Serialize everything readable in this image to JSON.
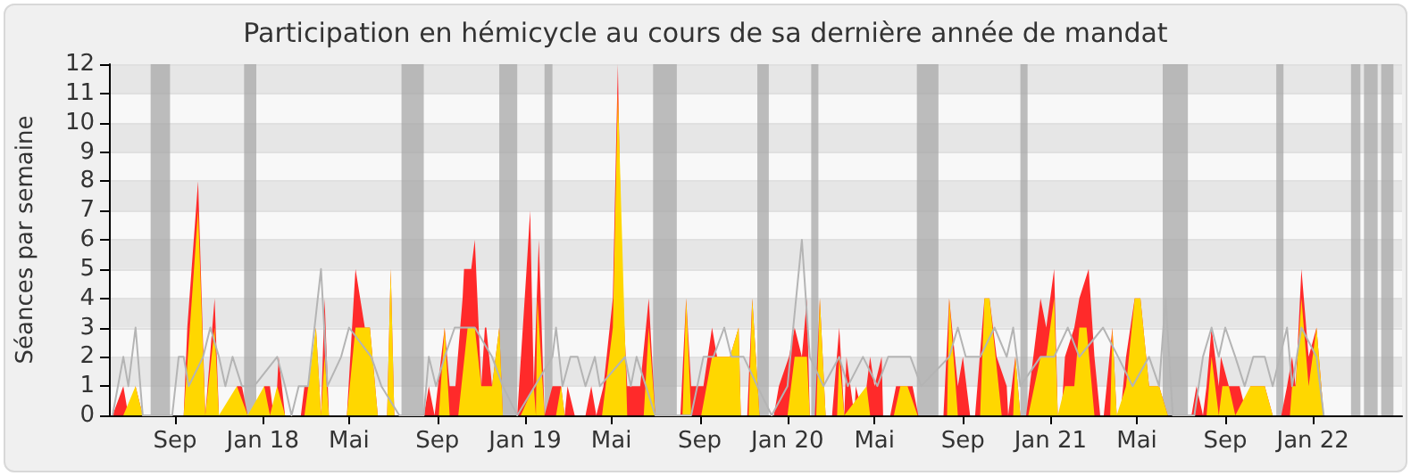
{
  "chart_data": {
    "type": "area",
    "title": "Participation en hémicycle au cours de sa dernière année de mandat",
    "ylabel": "Séances par semaine",
    "xlim": [
      "2017-06-01",
      "2022-05-05"
    ],
    "xticks": [
      {
        "value": "2017-09-01",
        "label": "Sep"
      },
      {
        "value": "2018-01-01",
        "label": "Jan 18"
      },
      {
        "value": "2018-05-01",
        "label": "Mai"
      },
      {
        "value": "2018-09-01",
        "label": "Sep"
      },
      {
        "value": "2019-01-01",
        "label": "Jan 19"
      },
      {
        "value": "2019-05-01",
        "label": "Mai"
      },
      {
        "value": "2019-09-01",
        "label": "Sep"
      },
      {
        "value": "2020-01-01",
        "label": "Jan 20"
      },
      {
        "value": "2020-05-01",
        "label": "Mai"
      },
      {
        "value": "2020-09-01",
        "label": "Sep"
      },
      {
        "value": "2021-01-01",
        "label": "Jan 21"
      },
      {
        "value": "2021-05-01",
        "label": "Mai"
      },
      {
        "value": "2021-09-01",
        "label": "Sep"
      },
      {
        "value": "2022-01-01",
        "label": "Jan 22"
      }
    ],
    "ylim": [
      0,
      12
    ],
    "yticks": [
      0,
      1,
      2,
      3,
      4,
      5,
      6,
      7,
      8,
      9,
      10,
      11,
      12
    ],
    "grid": "y",
    "series": [
      {
        "color": "#ff2a2a",
        "x": [
          "2017-06-06",
          "2017-06-21",
          "2017-06-28",
          "2017-07-08",
          "2017-07-18",
          "2017-09-13",
          "2017-09-18",
          "2017-10-03",
          "2017-10-13",
          "2017-10-26",
          "2017-11-01",
          "2017-11-21",
          "2017-11-26",
          "2017-12-03",
          "2017-12-11",
          "2017-12-28",
          "2018-01-03",
          "2018-01-11",
          "2018-01-16",
          "2018-01-21",
          "2018-01-23",
          "2018-02-01",
          "2018-02-23",
          "2018-02-28",
          "2018-03-08",
          "2018-03-16",
          "2018-03-23",
          "2018-03-28",
          "2018-04-03",
          "2018-04-28",
          "2018-05-10",
          "2018-05-23",
          "2018-05-30",
          "2018-06-10",
          "2018-06-23",
          "2018-06-28",
          "2018-07-03",
          "2018-08-13",
          "2018-08-20",
          "2018-08-28",
          "2018-09-11",
          "2018-09-18",
          "2018-09-26",
          "2018-10-06",
          "2018-10-08",
          "2018-10-18",
          "2018-10-23",
          "2018-11-01",
          "2018-11-06",
          "2018-11-08",
          "2018-11-16",
          "2018-11-26",
          "2018-12-01",
          "2018-12-21",
          "2019-01-03",
          "2019-01-08",
          "2019-01-13",
          "2019-01-20",
          "2019-01-28",
          "2019-02-08",
          "2019-02-20",
          "2019-02-25",
          "2019-03-01",
          "2019-03-11",
          "2019-03-26",
          "2019-04-03",
          "2019-04-10",
          "2019-04-20",
          "2019-05-03",
          "2019-05-10",
          "2019-05-15",
          "2019-05-23",
          "2019-06-10",
          "2019-06-22",
          "2019-07-01",
          "2019-08-05",
          "2019-08-13",
          "2019-08-20",
          "2019-09-06",
          "2019-09-18",
          "2019-09-25",
          "2019-10-13",
          "2019-10-25",
          "2019-10-28",
          "2019-11-06",
          "2019-11-13",
          "2019-11-23",
          "2019-12-13",
          "2019-12-20",
          "2020-01-03",
          "2020-01-11",
          "2020-01-21",
          "2020-01-28",
          "2020-02-01",
          "2020-02-08",
          "2020-02-15",
          "2020-02-23",
          "2020-03-03",
          "2020-03-13",
          "2020-03-20",
          "2020-03-23",
          "2020-04-03",
          "2020-04-05",
          "2020-04-15",
          "2020-04-20",
          "2020-04-25",
          "2020-05-01",
          "2020-05-11",
          "2020-05-13",
          "2020-05-23",
          "2020-05-31",
          "2020-06-06",
          "2020-06-16",
          "2020-06-23",
          "2020-07-01",
          "2020-08-05",
          "2020-08-13",
          "2020-08-25",
          "2020-09-01",
          "2020-09-11",
          "2020-09-18",
          "2020-10-01",
          "2020-10-08",
          "2020-10-18",
          "2020-11-01",
          "2020-11-03",
          "2020-11-13",
          "2020-11-20",
          "2020-11-28",
          "2020-12-08",
          "2020-12-18",
          "2020-12-26",
          "2021-01-06",
          "2021-01-11",
          "2021-01-16",
          "2021-01-21",
          "2021-02-03",
          "2021-02-10",
          "2021-02-23",
          "2021-03-03",
          "2021-03-11",
          "2021-03-16",
          "2021-03-28",
          "2021-04-03",
          "2021-04-08",
          "2021-04-16",
          "2021-04-28",
          "2021-05-06",
          "2021-05-18",
          "2021-06-01",
          "2021-06-13",
          "2021-07-16",
          "2021-07-23",
          "2021-08-01",
          "2021-08-06",
          "2021-08-13",
          "2021-08-23",
          "2021-08-26",
          "2021-09-06",
          "2021-09-21",
          "2021-10-01",
          "2021-10-06",
          "2021-10-26",
          "2021-11-06",
          "2021-11-18",
          "2021-11-26",
          "2021-12-03",
          "2021-12-08",
          "2021-12-16",
          "2021-12-26",
          "2022-01-06",
          "2022-01-16"
        ],
        "values": [
          0,
          1,
          0,
          1,
          0,
          0,
          3,
          8,
          0,
          4,
          0,
          0,
          1,
          1,
          0,
          0,
          1,
          1,
          0,
          1,
          2,
          0,
          0,
          1,
          1,
          3,
          0,
          4,
          0,
          0,
          5,
          3,
          3,
          0,
          0,
          5,
          0,
          0,
          1,
          0,
          3,
          1,
          1,
          4,
          5,
          5,
          6,
          1,
          3,
          3,
          1,
          3,
          0,
          0,
          5,
          7,
          1,
          6,
          0,
          1,
          1,
          0,
          1,
          0,
          0,
          1,
          0,
          1,
          4,
          12,
          5,
          1,
          1,
          4,
          0,
          0,
          4,
          1,
          1,
          3,
          2,
          2,
          3,
          0,
          0,
          4,
          0,
          0,
          1,
          2,
          3,
          2,
          4,
          0,
          0,
          4,
          0,
          0,
          3,
          0,
          2,
          0,
          1,
          0,
          1,
          2,
          1,
          2,
          0,
          0,
          1,
          1,
          1,
          1,
          0,
          0,
          4,
          1,
          2,
          0,
          0,
          4,
          4,
          2,
          1,
          0,
          2,
          0,
          0,
          2,
          4,
          3,
          5,
          0,
          0,
          2,
          3,
          4,
          5,
          2,
          0,
          0,
          3,
          0,
          0,
          2,
          4,
          4,
          1,
          1,
          0,
          0,
          1,
          0,
          1,
          3,
          1,
          2,
          1,
          1,
          0,
          1,
          1,
          0,
          0,
          1,
          2,
          1,
          5,
          2,
          3,
          0
        ]
      },
      {
        "color": "#ffd700",
        "x": [
          "2017-06-21",
          "2017-07-08",
          "2017-07-18",
          "2017-09-13",
          "2017-10-03",
          "2017-10-13",
          "2017-10-26",
          "2017-11-01",
          "2017-11-26",
          "2017-12-11",
          "2018-01-03",
          "2018-01-11",
          "2018-01-21",
          "2018-02-01",
          "2018-02-28",
          "2018-03-16",
          "2018-03-23",
          "2018-03-28",
          "2018-04-03",
          "2018-04-28",
          "2018-05-10",
          "2018-05-30",
          "2018-06-10",
          "2018-06-23",
          "2018-06-28",
          "2018-07-03",
          "2018-09-03",
          "2018-09-11",
          "2018-09-18",
          "2018-09-30",
          "2018-10-13",
          "2018-10-23",
          "2018-11-01",
          "2018-11-16",
          "2018-11-26",
          "2018-12-01",
          "2018-12-26",
          "2019-01-13",
          "2019-01-16",
          "2019-01-18",
          "2019-01-28",
          "2019-02-13",
          "2019-02-20",
          "2019-02-25",
          "2019-04-18",
          "2019-05-03",
          "2019-05-10",
          "2019-05-23",
          "2019-06-15",
          "2019-06-22",
          "2019-07-01",
          "2019-08-08",
          "2019-08-13",
          "2019-08-20",
          "2019-09-03",
          "2019-09-18",
          "2019-09-25",
          "2019-10-13",
          "2019-10-25",
          "2019-10-28",
          "2019-11-08",
          "2019-11-13",
          "2019-11-23",
          "2020-01-01",
          "2020-01-11",
          "2020-01-28",
          "2020-02-01",
          "2020-02-10",
          "2020-02-15",
          "2020-02-23",
          "2020-03-10",
          "2020-03-13",
          "2020-03-20",
          "2020-04-20",
          "2020-04-25",
          "2020-05-28",
          "2020-06-06",
          "2020-06-16",
          "2020-06-30",
          "2020-08-10",
          "2020-08-13",
          "2020-08-25",
          "2020-09-25",
          "2020-10-01",
          "2020-10-08",
          "2020-10-25",
          "2020-11-10",
          "2020-11-13",
          "2020-11-20",
          "2020-12-01",
          "2020-12-18",
          "2020-12-26",
          "2021-01-06",
          "2021-01-11",
          "2021-01-21",
          "2021-02-03",
          "2021-02-10",
          "2021-02-20",
          "2021-03-03",
          "2021-03-25",
          "2021-03-28",
          "2021-04-03",
          "2021-04-16",
          "2021-04-28",
          "2021-05-06",
          "2021-05-18",
          "2021-06-01",
          "2021-06-13",
          "2021-08-06",
          "2021-08-13",
          "2021-08-23",
          "2021-08-28",
          "2021-09-06",
          "2021-09-15",
          "2021-10-06",
          "2021-10-26",
          "2021-11-06",
          "2021-11-30",
          "2021-12-03",
          "2021-12-08",
          "2021-12-16",
          "2021-12-26",
          "2022-01-06",
          "2022-01-16"
        ],
        "values": [
          0,
          1,
          0,
          0,
          7,
          0,
          3,
          0,
          1,
          0,
          1,
          0,
          1,
          0,
          0,
          3,
          0,
          2,
          0,
          0,
          3,
          3,
          0,
          0,
          5,
          0,
          0,
          3,
          0,
          0,
          3,
          3,
          1,
          1,
          3,
          0,
          0,
          1,
          0,
          4,
          0,
          0,
          1,
          0,
          0,
          3,
          11,
          0,
          0,
          3,
          0,
          0,
          4,
          0,
          0,
          2,
          2,
          2,
          3,
          0,
          0,
          4,
          0,
          0,
          2,
          2,
          0,
          0,
          4,
          0,
          0,
          2,
          0,
          1,
          0,
          0,
          1,
          1,
          0,
          0,
          4,
          0,
          0,
          4,
          4,
          0,
          0,
          2,
          0,
          0,
          2,
          2,
          4,
          0,
          1,
          1,
          3,
          3,
          0,
          0,
          3,
          0,
          1,
          4,
          4,
          1,
          1,
          0,
          0,
          2,
          0,
          1,
          1,
          0,
          1,
          1,
          0,
          0,
          1,
          1,
          4,
          1,
          3,
          0
        ]
      },
      {
        "type": "line",
        "color": "#b4b4b4",
        "x": [
          "2017-06-06",
          "2017-06-21",
          "2017-06-28",
          "2017-07-08",
          "2017-07-18",
          "2017-08-28",
          "2017-09-06",
          "2017-09-13",
          "2017-09-20",
          "2017-10-10",
          "2017-10-20",
          "2017-11-01",
          "2017-11-10",
          "2017-11-20",
          "2017-12-03",
          "2017-12-20",
          "2018-01-21",
          "2018-02-01",
          "2018-02-10",
          "2018-02-20",
          "2018-03-05",
          "2018-03-23",
          "2018-04-01",
          "2018-04-20",
          "2018-05-01",
          "2018-06-01",
          "2018-06-15",
          "2018-07-10",
          "2018-08-13",
          "2018-08-20",
          "2018-08-30",
          "2018-09-11",
          "2018-09-25",
          "2018-10-23",
          "2018-11-16",
          "2018-12-01",
          "2018-12-21",
          "2019-02-08",
          "2019-02-13",
          "2019-02-22",
          "2019-03-05",
          "2019-03-15",
          "2019-03-26",
          "2019-04-08",
          "2019-04-15",
          "2019-05-20",
          "2019-05-28",
          "2019-06-05",
          "2019-07-01",
          "2019-08-20",
          "2019-09-06",
          "2019-09-20",
          "2019-10-05",
          "2019-10-15",
          "2019-11-01",
          "2019-11-20",
          "2019-12-10",
          "2020-01-01",
          "2020-01-21",
          "2020-02-01",
          "2020-02-20",
          "2020-03-13",
          "2020-03-25",
          "2020-04-15",
          "2020-05-05",
          "2020-05-20",
          "2020-06-05",
          "2020-06-20",
          "2020-07-05",
          "2020-08-13",
          "2020-08-25",
          "2020-09-05",
          "2020-09-25",
          "2020-10-15",
          "2020-11-01",
          "2020-11-10",
          "2020-11-20",
          "2020-12-18",
          "2021-01-06",
          "2021-01-25",
          "2021-02-10",
          "2021-03-15",
          "2021-04-05",
          "2021-04-25",
          "2021-05-18",
          "2021-06-01",
          "2021-06-10",
          "2021-06-20",
          "2021-07-20",
          "2021-08-01",
          "2021-08-13",
          "2021-08-23",
          "2021-09-01",
          "2021-09-15",
          "2021-09-28",
          "2021-10-10",
          "2021-10-26",
          "2021-11-06",
          "2021-11-26",
          "2021-12-03",
          "2021-12-16",
          "2022-01-06",
          "2022-01-16"
        ],
        "values": [
          0,
          2,
          1,
          3,
          0,
          0,
          2,
          2,
          1,
          2,
          3,
          2,
          1,
          2,
          1,
          1,
          2,
          1,
          0,
          1,
          1,
          5,
          1,
          2,
          3,
          2,
          1,
          0,
          0,
          2,
          1,
          2,
          3,
          3,
          2,
          1,
          0,
          2,
          3,
          1,
          2,
          2,
          1,
          2,
          1,
          2,
          1,
          2,
          0,
          0,
          2,
          2,
          3,
          2,
          2,
          1,
          0,
          1,
          6,
          2,
          1,
          2,
          1,
          2,
          1,
          2,
          2,
          2,
          1,
          2,
          3,
          2,
          2,
          3,
          2,
          3,
          1,
          2,
          2,
          3,
          2,
          3,
          2,
          1,
          2,
          1,
          4,
          0,
          0,
          2,
          3,
          2,
          3,
          2,
          1,
          2,
          2,
          1,
          3,
          1,
          3,
          2,
          0
        ]
      }
    ],
    "bands": [
      {
        "axis": "x",
        "from": "2017-07-29",
        "to": "2017-08-25",
        "color": "#a8a8a8"
      },
      {
        "axis": "x",
        "from": "2017-12-06",
        "to": "2017-12-23",
        "color": "#a8a8a8"
      },
      {
        "axis": "x",
        "from": "2018-07-13",
        "to": "2018-08-13",
        "color": "#a8a8a8"
      },
      {
        "axis": "x",
        "from": "2018-11-26",
        "to": "2018-12-21",
        "color": "#a8a8a8"
      },
      {
        "axis": "x",
        "from": "2019-01-28",
        "to": "2019-02-08",
        "color": "#a8a8a8"
      },
      {
        "axis": "x",
        "from": "2019-06-28",
        "to": "2019-07-31",
        "color": "#a8a8a8"
      },
      {
        "axis": "x",
        "from": "2019-11-20",
        "to": "2019-12-06",
        "color": "#a8a8a8"
      },
      {
        "axis": "x",
        "from": "2020-02-03",
        "to": "2020-02-13",
        "color": "#a8a8a8"
      },
      {
        "axis": "x",
        "from": "2020-06-29",
        "to": "2020-07-29",
        "color": "#a8a8a8"
      },
      {
        "axis": "x",
        "from": "2020-11-20",
        "to": "2020-11-30",
        "color": "#a8a8a8"
      },
      {
        "axis": "x",
        "from": "2021-06-06",
        "to": "2021-07-11",
        "color": "#a8a8a8"
      },
      {
        "axis": "x",
        "from": "2021-11-11",
        "to": "2021-11-21",
        "color": "#a8a8a8"
      },
      {
        "axis": "x",
        "from": "2022-02-23",
        "to": "2022-03-08",
        "color": "#a8a8a8"
      },
      {
        "axis": "x",
        "from": "2022-03-13",
        "to": "2022-04-01",
        "color": "#a8a8a8"
      },
      {
        "axis": "x",
        "from": "2022-04-06",
        "to": "2022-04-23",
        "color": "#a8a8a8"
      }
    ]
  }
}
